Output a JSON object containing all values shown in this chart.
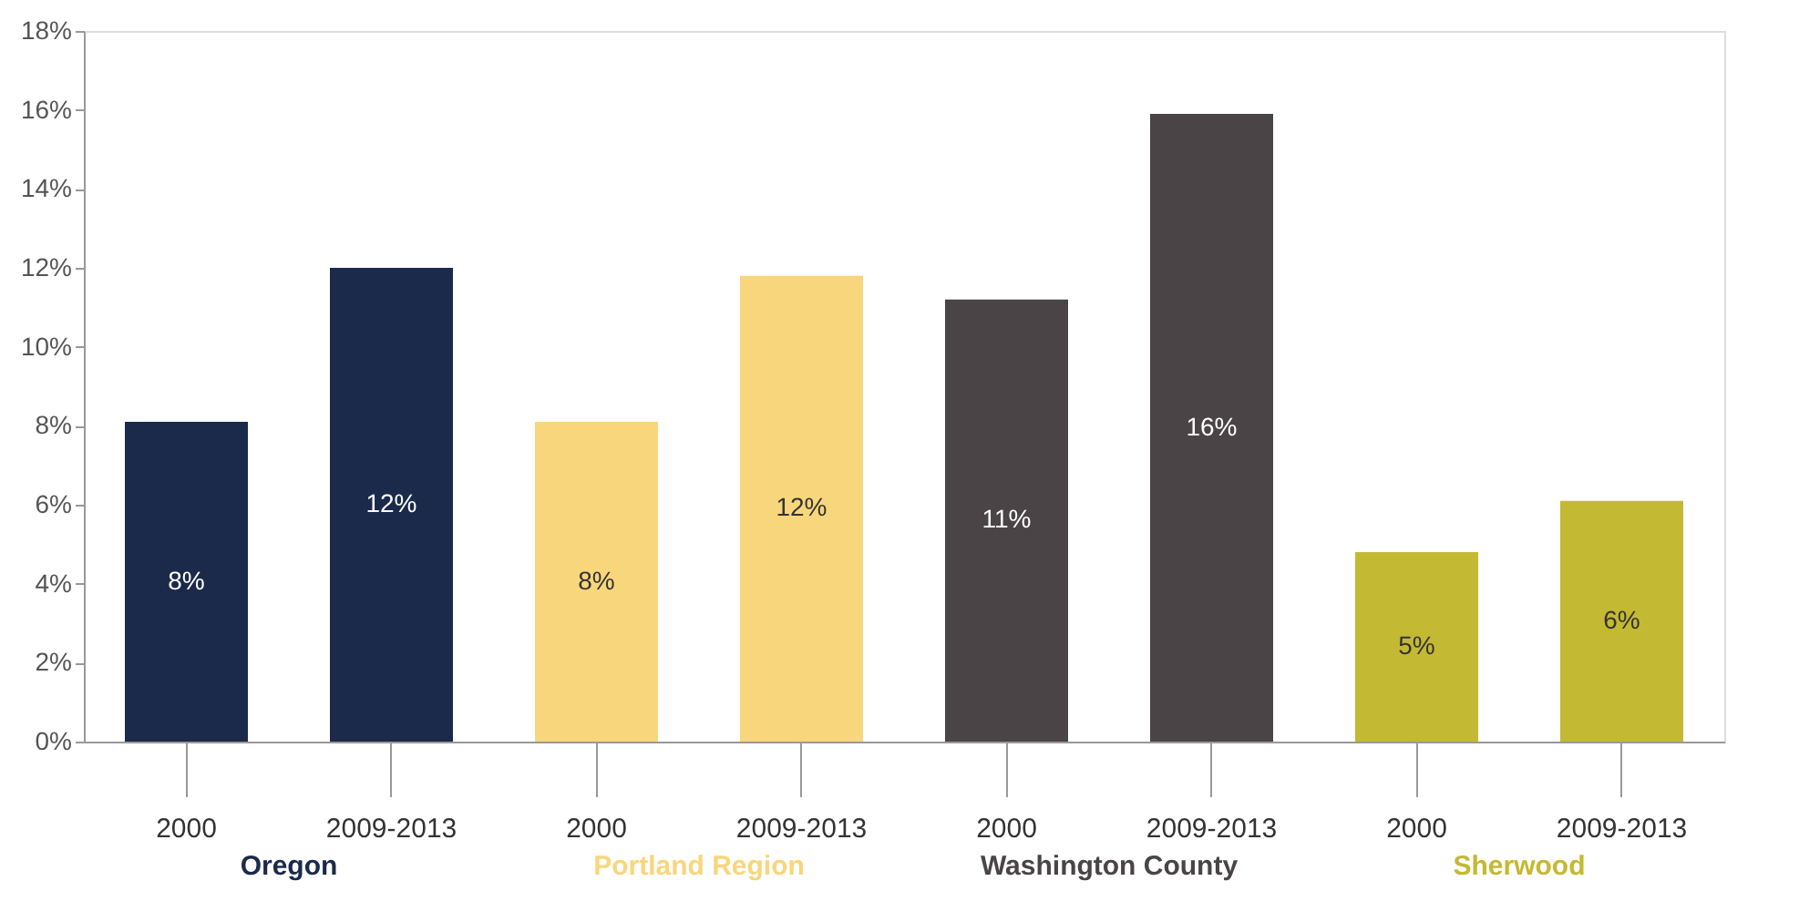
{
  "chart_data": {
    "type": "bar",
    "categories": [
      "2000",
      "2009-2013",
      "2000",
      "2009-2013",
      "2000",
      "2009-2013",
      "2000",
      "2009-2013"
    ],
    "series": [
      {
        "name": "Oregon",
        "color": "#1b2a4a",
        "values": [
          8.1,
          12.0,
          null,
          null,
          null,
          null,
          null,
          null
        ],
        "value_labels": [
          "8%",
          "12%",
          null,
          null,
          null,
          null,
          null,
          null
        ]
      },
      {
        "name": "Portland Region",
        "color": "#f8d67c",
        "values": [
          null,
          null,
          8.1,
          11.8,
          null,
          null,
          null,
          null
        ],
        "value_labels": [
          null,
          null,
          "8%",
          "12%",
          null,
          null,
          null,
          null
        ]
      },
      {
        "name": "Washington County",
        "color": "#4a4447",
        "values": [
          null,
          null,
          null,
          null,
          11.2,
          15.9,
          null,
          null
        ],
        "value_labels": [
          null,
          null,
          null,
          null,
          "11%",
          "16%",
          null,
          null
        ]
      },
      {
        "name": "Sherwood",
        "color": "#c4b932",
        "values": [
          null,
          null,
          null,
          null,
          null,
          null,
          4.8,
          6.1
        ],
        "value_labels": [
          null,
          null,
          null,
          null,
          null,
          null,
          "5%",
          "6%"
        ]
      }
    ],
    "ylim": [
      0,
      18
    ],
    "yticks": [
      {
        "value": 0,
        "label": "0%"
      },
      {
        "value": 2,
        "label": "2%"
      },
      {
        "value": 4,
        "label": "4%"
      },
      {
        "value": 6,
        "label": "6%"
      },
      {
        "value": 8,
        "label": "8%"
      },
      {
        "value": 10,
        "label": "10%"
      },
      {
        "value": 12,
        "label": "12%"
      },
      {
        "value": 14,
        "label": "14%"
      },
      {
        "value": 16,
        "label": "16%"
      },
      {
        "value": 18,
        "label": "18%"
      }
    ],
    "grid": false,
    "legend": false
  }
}
